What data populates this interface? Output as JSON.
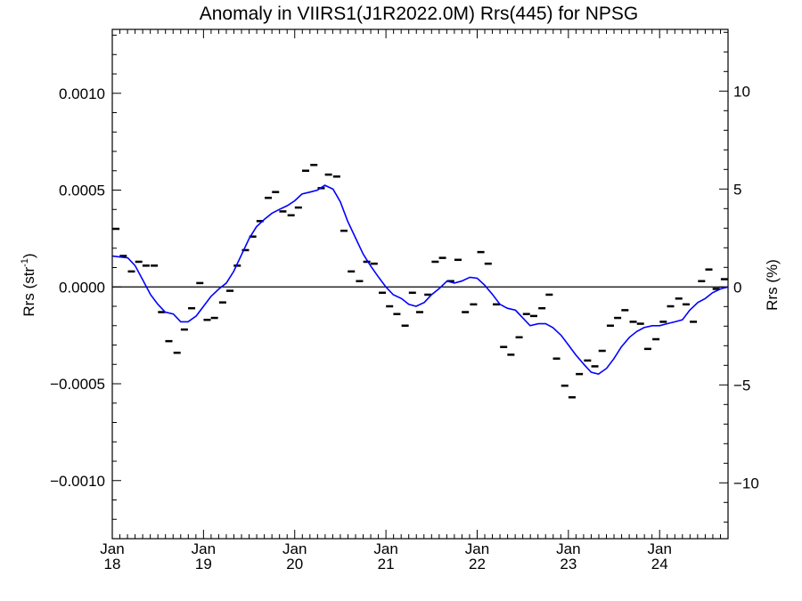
{
  "chart_data": {
    "type": "line",
    "title": "Anomaly in VIIRS1(J1R2022.0M) Rrs(445) for NPSG",
    "ylabel_left_base": "Rrs (str",
    "ylabel_left_sup": "-1",
    "ylabel_left_close": ")",
    "ylabel_right": "Rrs (%)",
    "xlim": [
      2018.0,
      2024.75
    ],
    "ylim_left": [
      -0.0013,
      0.00133
    ],
    "ylim_right": [
      -12.85,
      13.15
    ],
    "x_ticks": [
      {
        "value": 2018,
        "month": "Jan",
        "year": "18"
      },
      {
        "value": 2019,
        "month": "Jan",
        "year": "19"
      },
      {
        "value": 2020,
        "month": "Jan",
        "year": "20"
      },
      {
        "value": 2021,
        "month": "Jan",
        "year": "21"
      },
      {
        "value": 2022,
        "month": "Jan",
        "year": "22"
      },
      {
        "value": 2023,
        "month": "Jan",
        "year": "23"
      },
      {
        "value": 2024,
        "month": "Jan",
        "year": "24"
      }
    ],
    "y_ticks_left": [
      {
        "value": 0.001,
        "label": "0.0010"
      },
      {
        "value": 0.0005,
        "label": "0.0005"
      },
      {
        "value": 0.0,
        "label": "0.0000"
      },
      {
        "value": -0.0005,
        "label": "−0.0005"
      },
      {
        "value": -0.001,
        "label": "−0.0010"
      }
    ],
    "y_ticks_right": [
      {
        "value": 10,
        "label": "10"
      },
      {
        "value": 5,
        "label": "5"
      },
      {
        "value": 0,
        "label": "0"
      },
      {
        "value": -5,
        "label": "−5"
      },
      {
        "value": -10,
        "label": "−10"
      }
    ],
    "zero_line": true,
    "series": [
      {
        "style": "dash-markers",
        "color": "#000000",
        "x": [
          2018.04,
          2018.12,
          2018.21,
          2018.29,
          2018.37,
          2018.46,
          2018.54,
          2018.62,
          2018.71,
          2018.79,
          2018.87,
          2018.96,
          2019.04,
          2019.12,
          2019.21,
          2019.29,
          2019.37,
          2019.46,
          2019.54,
          2019.62,
          2019.71,
          2019.79,
          2019.87,
          2019.96,
          2020.04,
          2020.12,
          2020.21,
          2020.29,
          2020.37,
          2020.46,
          2020.54,
          2020.62,
          2020.71,
          2020.79,
          2020.87,
          2020.96,
          2021.04,
          2021.12,
          2021.21,
          2021.29,
          2021.37,
          2021.46,
          2021.54,
          2021.62,
          2021.71,
          2021.79,
          2021.87,
          2021.96,
          2022.04,
          2022.12,
          2022.21,
          2022.29,
          2022.37,
          2022.46,
          2022.54,
          2022.62,
          2022.71,
          2022.79,
          2022.87,
          2022.96,
          2023.04,
          2023.12,
          2023.21,
          2023.29,
          2023.37,
          2023.46,
          2023.54,
          2023.62,
          2023.71,
          2023.79,
          2023.87,
          2023.96,
          2024.04,
          2024.12,
          2024.21,
          2024.29,
          2024.37,
          2024.46,
          2024.54,
          2024.62,
          2024.71
        ],
        "y": [
          0.0003,
          0.00016,
          8e-05,
          0.00013,
          0.00011,
          0.00011,
          -0.00013,
          -0.00028,
          -0.00034,
          -0.00022,
          -0.00011,
          2e-05,
          -0.00017,
          -0.00016,
          -8e-05,
          -2e-05,
          0.00011,
          0.00019,
          0.00026,
          0.00034,
          0.00046,
          0.00049,
          0.00039,
          0.00037,
          0.00041,
          0.0006,
          0.00063,
          0.00051,
          0.00058,
          0.00057,
          0.00029,
          8e-05,
          3e-05,
          0.00013,
          0.00012,
          -3e-05,
          -0.0001,
          -0.00014,
          -0.0002,
          -3e-05,
          -0.00013,
          -4e-05,
          0.00013,
          0.00015,
          3e-05,
          0.00014,
          -0.00013,
          -9e-05,
          0.00018,
          0.00012,
          -9e-05,
          -0.00031,
          -0.00035,
          -0.00026,
          -0.00014,
          -0.00015,
          -0.00011,
          -4e-05,
          -0.00037,
          -0.00051,
          -0.00057,
          -0.00045,
          -0.00038,
          -0.00041,
          -0.00033,
          -0.0002,
          -0.00016,
          -0.00012,
          -0.00018,
          -0.00019,
          -0.00032,
          -0.00027,
          -0.00018,
          -0.0001,
          -6e-05,
          -9e-05,
          -0.00018,
          3e-05,
          9e-05,
          -1e-05,
          4e-05
        ]
      },
      {
        "style": "line",
        "color": "#0000ff",
        "x": [
          2018.0,
          2018.08,
          2018.17,
          2018.25,
          2018.33,
          2018.42,
          2018.5,
          2018.58,
          2018.67,
          2018.75,
          2018.83,
          2018.92,
          2019.0,
          2019.08,
          2019.17,
          2019.25,
          2019.33,
          2019.42,
          2019.5,
          2019.58,
          2019.67,
          2019.75,
          2019.83,
          2019.92,
          2020.0,
          2020.08,
          2020.17,
          2020.25,
          2020.33,
          2020.42,
          2020.5,
          2020.58,
          2020.67,
          2020.75,
          2020.83,
          2020.92,
          2021.0,
          2021.08,
          2021.17,
          2021.25,
          2021.33,
          2021.42,
          2021.5,
          2021.58,
          2021.67,
          2021.75,
          2021.83,
          2021.92,
          2022.0,
          2022.08,
          2022.17,
          2022.25,
          2022.33,
          2022.42,
          2022.5,
          2022.58,
          2022.67,
          2022.75,
          2022.83,
          2022.92,
          2023.0,
          2023.08,
          2023.17,
          2023.25,
          2023.33,
          2023.42,
          2023.5,
          2023.58,
          2023.67,
          2023.75,
          2023.83,
          2023.92,
          2024.0,
          2024.08,
          2024.17,
          2024.25,
          2024.33,
          2024.42,
          2024.5,
          2024.58,
          2024.67,
          2024.75
        ],
        "y": [
          0.00016,
          0.000155,
          0.00015,
          0.00011,
          4e-05,
          -4e-05,
          -9e-05,
          -0.00013,
          -0.00014,
          -0.00018,
          -0.00018,
          -0.00015,
          -0.0001,
          -5e-05,
          -1e-05,
          2e-05,
          8e-05,
          0.00017,
          0.00025,
          0.00031,
          0.00035,
          0.00038,
          0.0004,
          0.00042,
          0.000445,
          0.00048,
          0.00049,
          0.0005,
          0.000525,
          0.000505,
          0.00044,
          0.00034,
          0.00025,
          0.00017,
          0.00011,
          5e-05,
          0.0,
          -4e-05,
          -6e-05,
          -9e-05,
          -0.0001,
          -8e-05,
          -4e-05,
          -1e-05,
          3e-05,
          2e-05,
          3e-05,
          5e-05,
          4.5e-05,
          1e-05,
          -4e-05,
          -9e-05,
          -0.00011,
          -0.00012,
          -0.00016,
          -0.0002,
          -0.00019,
          -0.00019,
          -0.00021,
          -0.00025,
          -0.0003,
          -0.00035,
          -0.0004,
          -0.00044,
          -0.00045,
          -0.00042,
          -0.00037,
          -0.00031,
          -0.00026,
          -0.00023,
          -0.00021,
          -0.0002,
          -0.0002,
          -0.00019,
          -0.00018,
          -0.00017,
          -0.00012,
          -8e-05,
          -6e-05,
          -3e-05,
          -1e-05,
          0.0
        ]
      }
    ]
  }
}
